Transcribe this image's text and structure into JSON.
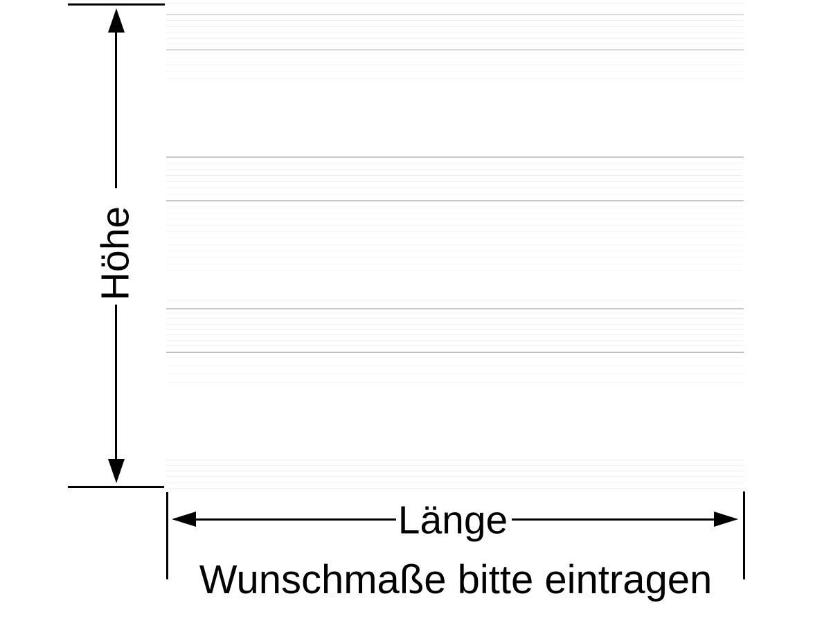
{
  "diagram": {
    "height_label": "Höhe",
    "length_label": "Länge",
    "caption": "Wunschmaße bitte eintragen"
  },
  "colors": {
    "line": "#000000",
    "background": "#ffffff",
    "groove_dark": "#c8c8c8",
    "groove_light": "#f0f0f0"
  },
  "panel_image": {
    "description": "white-panel-with-horizontal-grooves",
    "stripes": [
      [
        4,
        "#ececec",
        1
      ],
      [
        20,
        "#dcdcdc",
        2
      ],
      [
        29,
        "#f1f1f1",
        1
      ],
      [
        38,
        "#f1f1f1",
        1
      ],
      [
        47,
        "#f1f1f1",
        1
      ],
      [
        55,
        "#f1f1f1",
        1
      ],
      [
        63,
        "#f1f1f1",
        1
      ],
      [
        71,
        "#dcdcdc",
        2
      ],
      [
        83,
        "#f6f6f6",
        1
      ],
      [
        93,
        "#f6f6f6",
        1
      ],
      [
        103,
        "#f6f6f6",
        1
      ],
      [
        113,
        "#f6f6f6",
        1
      ],
      [
        226,
        "#c8c8c8",
        2
      ],
      [
        235,
        "#f0f0f0",
        1
      ],
      [
        244,
        "#f0f0f0",
        1
      ],
      [
        253,
        "#f0f0f0",
        1
      ],
      [
        262,
        "#f0f0f0",
        1
      ],
      [
        271,
        "#f0f0f0",
        1
      ],
      [
        280,
        "#f0f0f0",
        1
      ],
      [
        289,
        "#c8c8c8",
        2
      ],
      [
        298,
        "#f5f5f5",
        1
      ],
      [
        307,
        "#f5f5f5",
        1
      ],
      [
        316,
        "#f5f5f5",
        1
      ],
      [
        325,
        "#f5f5f5",
        1
      ],
      [
        334,
        "#f5f5f5",
        1
      ],
      [
        343,
        "#f5f5f5",
        1
      ],
      [
        353,
        "#f8f8f8",
        1
      ],
      [
        362,
        "#f8f8f8",
        1
      ],
      [
        371,
        "#f8f8f8",
        1
      ],
      [
        381,
        "#f8f8f8",
        1
      ],
      [
        390,
        "#f8f8f8",
        1
      ],
      [
        433,
        "#f1f1f1",
        1
      ],
      [
        445,
        "#c8c8c8",
        2
      ],
      [
        453,
        "#f0f0f0",
        1
      ],
      [
        460,
        "#f0f0f0",
        1
      ],
      [
        468,
        "#f0f0f0",
        1
      ],
      [
        476,
        "#f0f0f0",
        1
      ],
      [
        483,
        "#f0f0f0",
        1
      ],
      [
        491,
        "#f0f0f0",
        1
      ],
      [
        498,
        "#f0f0f0",
        1
      ],
      [
        508,
        "#c0c0c0",
        2
      ],
      [
        516,
        "#f5f5f5",
        1
      ],
      [
        528,
        "#f5f5f5",
        1
      ],
      [
        540,
        "#f5f5f5",
        1
      ],
      [
        552,
        "#f5f5f5",
        1
      ],
      [
        664,
        "#e4e4e4",
        1
      ],
      [
        672,
        "#f3f3f3",
        1
      ],
      [
        680,
        "#f3f3f3",
        1
      ],
      [
        688,
        "#f3f3f3",
        1
      ],
      [
        697,
        "#f3f3f3",
        1
      ],
      [
        705,
        "#f3f3f3",
        1
      ]
    ]
  }
}
